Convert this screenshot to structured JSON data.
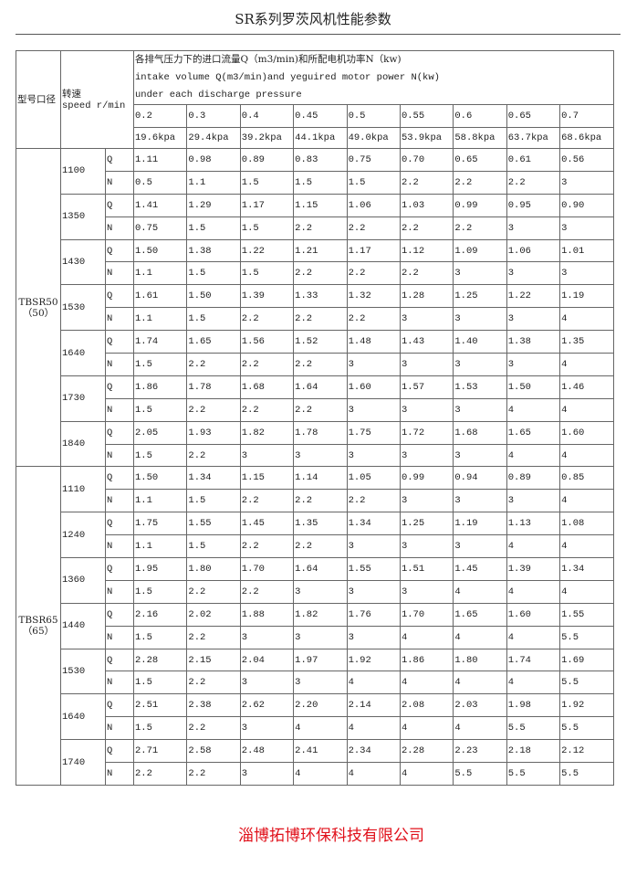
{
  "title": "SR系列罗茨风机性能参数",
  "header": {
    "model_label": "型号口径",
    "speed_label_cn": "转速",
    "speed_label_en": "speed r/min",
    "desc_cn": "各排气压力下的进口流量Q（m3/min)和所配电机功率N（kw)",
    "desc_en1": "intake volume Q(m3/min)and yeguired motor power N(kw)",
    "desc_en2": "under each discharge pressure",
    "pressures": [
      "0.2",
      "0.3",
      "0.4",
      "0.45",
      "0.5",
      "0.55",
      "0.6",
      "0.65",
      "0.7"
    ],
    "kpa": [
      "19.6kpa",
      "29.4kpa",
      "39.2kpa",
      "44.1kpa",
      "49.0kpa",
      "53.9kpa",
      "58.8kpa",
      "63.7kpa",
      "68.6kpa"
    ]
  },
  "groups": [
    {
      "model": "TBSR50",
      "bore": "（50）",
      "speeds": [
        {
          "rpm": "1100",
          "Q": [
            "1.11",
            "0.98",
            "0.89",
            "0.83",
            "0.75",
            "0.70",
            "0.65",
            "0.61",
            "0.56"
          ],
          "N": [
            "0.5",
            "1.1",
            "1.5",
            "1.5",
            "1.5",
            "2.2",
            "2.2",
            "2.2",
            "3"
          ]
        },
        {
          "rpm": "1350",
          "Q": [
            "1.41",
            "1.29",
            "1.17",
            "1.15",
            "1.06",
            "1.03",
            "0.99",
            "0.95",
            "0.90"
          ],
          "N": [
            "0.75",
            "1.5",
            "1.5",
            "2.2",
            "2.2",
            "2.2",
            "2.2",
            "3",
            "3"
          ]
        },
        {
          "rpm": "1430",
          "Q": [
            "1.50",
            "1.38",
            "1.22",
            "1.21",
            "1.17",
            "1.12",
            "1.09",
            "1.06",
            "1.01"
          ],
          "N": [
            "1.1",
            "1.5",
            "1.5",
            "2.2",
            "2.2",
            "2.2",
            "3",
            "3",
            "3"
          ]
        },
        {
          "rpm": "1530",
          "Q": [
            "1.61",
            "1.50",
            "1.39",
            "1.33",
            "1.32",
            "1.28",
            "1.25",
            "1.22",
            "1.19"
          ],
          "N": [
            "1.1",
            "1.5",
            "2.2",
            "2.2",
            "2.2",
            "3",
            "3",
            "3",
            "4"
          ]
        },
        {
          "rpm": "1640",
          "Q": [
            "1.74",
            "1.65",
            "1.56",
            "1.52",
            "1.48",
            "1.43",
            "1.40",
            "1.38",
            "1.35"
          ],
          "N": [
            "1.5",
            "2.2",
            "2.2",
            "2.2",
            "3",
            "3",
            "3",
            "3",
            "4"
          ]
        },
        {
          "rpm": "1730",
          "Q": [
            "1.86",
            "1.78",
            "1.68",
            "1.64",
            "1.60",
            "1.57",
            "1.53",
            "1.50",
            "1.46"
          ],
          "N": [
            "1.5",
            "2.2",
            "2.2",
            "2.2",
            "3",
            "3",
            "3",
            "4",
            "4"
          ]
        },
        {
          "rpm": "1840",
          "Q": [
            "2.05",
            "1.93",
            "1.82",
            "1.78",
            "1.75",
            "1.72",
            "1.68",
            "1.65",
            "1.60"
          ],
          "N": [
            "1.5",
            "2.2",
            "3",
            "3",
            "3",
            "3",
            "3",
            "4",
            "4"
          ]
        }
      ]
    },
    {
      "model": "TBSR65",
      "bore": "（65）",
      "speeds": [
        {
          "rpm": "1110",
          "Q": [
            "1.50",
            "1.34",
            "1.15",
            "1.14",
            "1.05",
            "0.99",
            "0.94",
            "0.89",
            "0.85"
          ],
          "N": [
            "1.1",
            "1.5",
            "2.2",
            "2.2",
            "2.2",
            "3",
            "3",
            "3",
            "4"
          ]
        },
        {
          "rpm": "1240",
          "Q": [
            "1.75",
            "1.55",
            "1.45",
            "1.35",
            "1.34",
            "1.25",
            "1.19",
            "1.13",
            "1.08"
          ],
          "N": [
            "1.1",
            "1.5",
            "2.2",
            "2.2",
            "3",
            "3",
            "3",
            "4",
            "4"
          ]
        },
        {
          "rpm": "1360",
          "Q": [
            "1.95",
            "1.80",
            "1.70",
            "1.64",
            "1.55",
            "1.51",
            "1.45",
            "1.39",
            "1.34"
          ],
          "N": [
            "1.5",
            "2.2",
            "2.2",
            "3",
            "3",
            "3",
            "4",
            "4",
            "4"
          ]
        },
        {
          "rpm": "1440",
          "Q": [
            "2.16",
            "2.02",
            "1.88",
            "1.82",
            "1.76",
            "1.70",
            "1.65",
            "1.60",
            "1.55"
          ],
          "N": [
            "1.5",
            "2.2",
            "3",
            "3",
            "3",
            "4",
            "4",
            "4",
            "5.5"
          ]
        },
        {
          "rpm": "1530",
          "Q": [
            "2.28",
            "2.15",
            "2.04",
            "1.97",
            "1.92",
            "1.86",
            "1.80",
            "1.74",
            "1.69"
          ],
          "N": [
            "1.5",
            "2.2",
            "3",
            "3",
            "4",
            "4",
            "4",
            "4",
            "5.5"
          ]
        },
        {
          "rpm": "1640",
          "Q": [
            "2.51",
            "2.38",
            "2.62",
            "2.20",
            "2.14",
            "2.08",
            "2.03",
            "1.98",
            "1.92"
          ],
          "N": [
            "1.5",
            "2.2",
            "3",
            "4",
            "4",
            "4",
            "4",
            "5.5",
            "5.5"
          ]
        },
        {
          "rpm": "1740",
          "Q": [
            "2.71",
            "2.58",
            "2.48",
            "2.41",
            "2.34",
            "2.28",
            "2.23",
            "2.18",
            "2.12"
          ],
          "N": [
            "2.2",
            "2.2",
            "3",
            "4",
            "4",
            "4",
            "5.5",
            "5.5",
            "5.5"
          ]
        }
      ]
    }
  ],
  "row_labels": {
    "Q": "Q",
    "N": "N"
  },
  "footer": "淄博拓博环保科技有限公司",
  "colors": {
    "footer": "#e0101a",
    "border": "#666666"
  }
}
